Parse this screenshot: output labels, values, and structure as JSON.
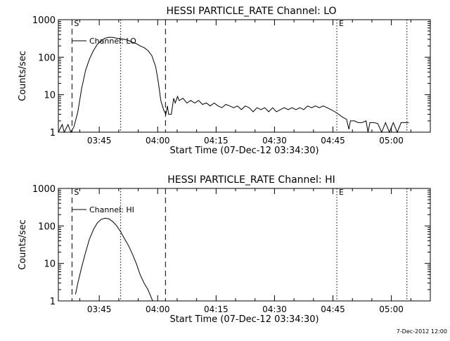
{
  "footer": {
    "timestamp": "7-Dec-2012 12:00"
  },
  "chart_data": [
    {
      "type": "line",
      "title": "HESSI PARTICLE_RATE Channel: LO",
      "xlabel": "Start Time (07-Dec-12 03:34:30)",
      "ylabel": "Counts/sec",
      "x_unit": "minutes after 03:34:30",
      "xlim": [
        0,
        95.5
      ],
      "ylim": [
        1,
        1000
      ],
      "yscale": "log",
      "xticks": [
        {
          "x": 10.5,
          "label": "03:45"
        },
        {
          "x": 25.5,
          "label": "04:00"
        },
        {
          "x": 40.5,
          "label": "04:15"
        },
        {
          "x": 55.5,
          "label": "04:30"
        },
        {
          "x": 70.5,
          "label": "04:45"
        },
        {
          "x": 85.5,
          "label": "05:00"
        }
      ],
      "yticks": [
        {
          "y": 1,
          "label": "1"
        },
        {
          "y": 10,
          "label": "10"
        },
        {
          "y": 100,
          "label": "100"
        },
        {
          "y": 1000,
          "label": "1000"
        }
      ],
      "markers": [
        {
          "x": 3.5,
          "style": "dashed",
          "label": "S"
        },
        {
          "x": 16.0,
          "style": "dotted",
          "label": ""
        },
        {
          "x": 27.5,
          "style": "dashed",
          "label": ""
        },
        {
          "x": 71.5,
          "style": "dotted",
          "label": "E"
        },
        {
          "x": 89.5,
          "style": "dotted",
          "label": ""
        }
      ],
      "legend": {
        "label": "Channel: LO",
        "placement": "top-left"
      },
      "series": [
        {
          "name": "Channel: LO",
          "points": [
            [
              0,
              1
            ],
            [
              1.0,
              1.6
            ],
            [
              1.5,
              1
            ],
            [
              2.5,
              1.6
            ],
            [
              3.2,
              1
            ],
            [
              4,
              1.4
            ],
            [
              5,
              3.5
            ],
            [
              6,
              15
            ],
            [
              7,
              45
            ],
            [
              8,
              90
            ],
            [
              9,
              150
            ],
            [
              10,
              220
            ],
            [
              11,
              280
            ],
            [
              12,
              320
            ],
            [
              13,
              340
            ],
            [
              14,
              335
            ],
            [
              15,
              320
            ],
            [
              16,
              310
            ],
            [
              17,
              300
            ],
            [
              18,
              280
            ],
            [
              19,
              250
            ],
            [
              20,
              230
            ],
            [
              21,
              200
            ],
            [
              22,
              180
            ],
            [
              23,
              150
            ],
            [
              24,
              110
            ],
            [
              25,
              55
            ],
            [
              25.7,
              20
            ],
            [
              26.3,
              7
            ],
            [
              27,
              4
            ],
            [
              27.6,
              3
            ],
            [
              28,
              5
            ],
            [
              28.3,
              3
            ],
            [
              29,
              3
            ],
            [
              29.6,
              8
            ],
            [
              30,
              6
            ],
            [
              30.6,
              9
            ],
            [
              31,
              7
            ],
            [
              32,
              8
            ],
            [
              33,
              6
            ],
            [
              34,
              7
            ],
            [
              35,
              6
            ],
            [
              36,
              7
            ],
            [
              37,
              5.5
            ],
            [
              38,
              6
            ],
            [
              39,
              5
            ],
            [
              40,
              6
            ],
            [
              41,
              5
            ],
            [
              42,
              4.5
            ],
            [
              43,
              5.5
            ],
            [
              44,
              5
            ],
            [
              45,
              4.5
            ],
            [
              46,
              5
            ],
            [
              47,
              4
            ],
            [
              48,
              5
            ],
            [
              49,
              4.5
            ],
            [
              50,
              3.5
            ],
            [
              51,
              4.5
            ],
            [
              52,
              4
            ],
            [
              53,
              4.5
            ],
            [
              54,
              3.5
            ],
            [
              55,
              4.5
            ],
            [
              56,
              3.5
            ],
            [
              57,
              4
            ],
            [
              58,
              4.5
            ],
            [
              59,
              4
            ],
            [
              60,
              4.5
            ],
            [
              61,
              4
            ],
            [
              62,
              4.5
            ],
            [
              63,
              4
            ],
            [
              64,
              5
            ],
            [
              65,
              4.5
            ],
            [
              66,
              5
            ],
            [
              67,
              4.5
            ],
            [
              68,
              5
            ],
            [
              69,
              4.5
            ],
            [
              70,
              4
            ],
            [
              71,
              3.5
            ],
            [
              72,
              3
            ],
            [
              73,
              2.5
            ],
            [
              74,
              2.2
            ],
            [
              74.6,
              1.2
            ],
            [
              75,
              2
            ],
            [
              76,
              2
            ],
            [
              77,
              1.8
            ],
            [
              78,
              1.8
            ],
            [
              79,
              2
            ],
            [
              79.5,
              1
            ],
            [
              80,
              1.8
            ],
            [
              81,
              1.8
            ],
            [
              82,
              1.7
            ],
            [
              83,
              1
            ],
            [
              84,
              1.8
            ],
            [
              85,
              1
            ],
            [
              86,
              1.8
            ],
            [
              87,
              1
            ],
            [
              88,
              1.8
            ],
            [
              90,
              1.8
            ]
          ]
        }
      ]
    },
    {
      "type": "line",
      "title": "HESSI PARTICLE_RATE Channel: HI",
      "xlabel": "Start Time (07-Dec-12 03:34:30)",
      "ylabel": "Counts/sec",
      "x_unit": "minutes after 03:34:30",
      "xlim": [
        0,
        95.5
      ],
      "ylim": [
        1,
        1000
      ],
      "yscale": "log",
      "xticks": [
        {
          "x": 10.5,
          "label": "03:45"
        },
        {
          "x": 25.5,
          "label": "04:00"
        },
        {
          "x": 40.5,
          "label": "04:15"
        },
        {
          "x": 55.5,
          "label": "04:30"
        },
        {
          "x": 70.5,
          "label": "04:45"
        },
        {
          "x": 85.5,
          "label": "05:00"
        }
      ],
      "yticks": [
        {
          "y": 1,
          "label": "1"
        },
        {
          "y": 10,
          "label": "10"
        },
        {
          "y": 100,
          "label": "100"
        },
        {
          "y": 1000,
          "label": "1000"
        }
      ],
      "markers": [
        {
          "x": 3.5,
          "style": "dashed",
          "label": "S"
        },
        {
          "x": 16.0,
          "style": "dotted",
          "label": ""
        },
        {
          "x": 27.5,
          "style": "dashed",
          "label": ""
        },
        {
          "x": 71.5,
          "style": "dotted",
          "label": "E"
        },
        {
          "x": 89.5,
          "style": "dotted",
          "label": ""
        }
      ],
      "legend": {
        "label": "Channel: HI",
        "placement": "top-left"
      },
      "series": [
        {
          "name": "Channel: HI",
          "points": [
            [
              4.4,
              1.5
            ],
            [
              5,
              3
            ],
            [
              6,
              8
            ],
            [
              7,
              20
            ],
            [
              8,
              45
            ],
            [
              9,
              80
            ],
            [
              10,
              120
            ],
            [
              11,
              150
            ],
            [
              12,
              160
            ],
            [
              13,
              155
            ],
            [
              14,
              130
            ],
            [
              15,
              100
            ],
            [
              16,
              70
            ],
            [
              17,
              45
            ],
            [
              18,
              30
            ],
            [
              19,
              18
            ],
            [
              20,
              10
            ],
            [
              21,
              5
            ],
            [
              22,
              3
            ],
            [
              23,
              2
            ],
            [
              23.5,
              1.5
            ],
            [
              24.2,
              1
            ]
          ]
        }
      ]
    }
  ]
}
